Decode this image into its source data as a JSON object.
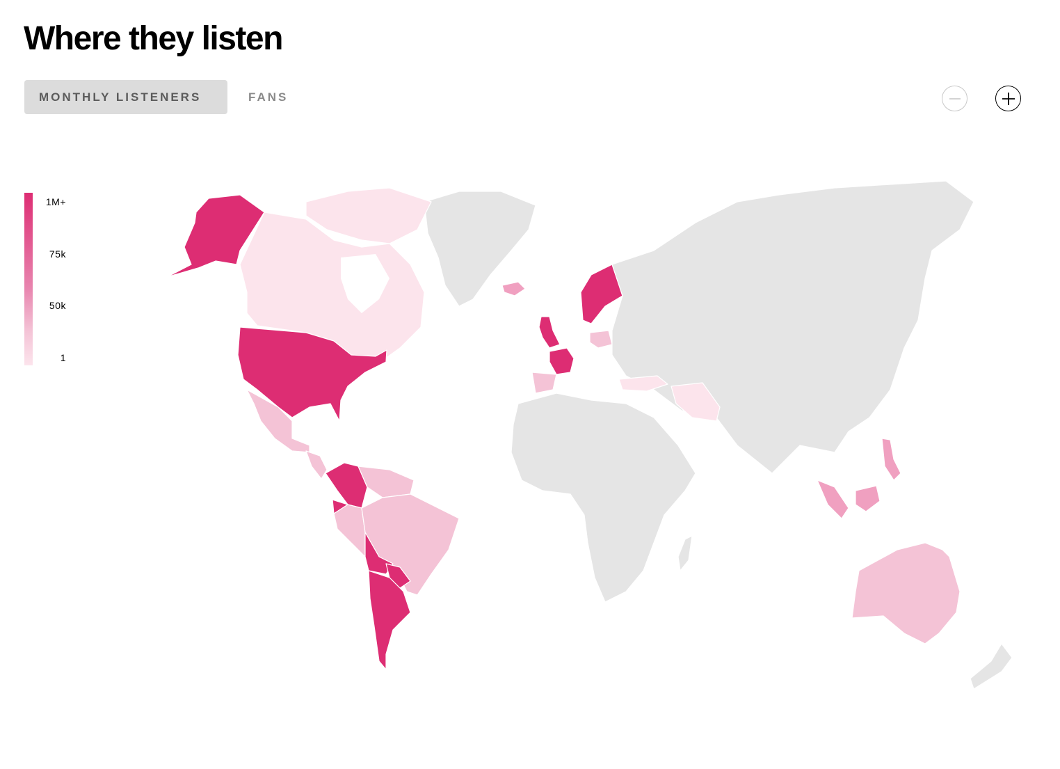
{
  "title": "Where they listen",
  "tabs": [
    {
      "label": "MONTHLY LISTENERS",
      "active": true
    },
    {
      "label": "FANS",
      "active": false
    }
  ],
  "zoom": {
    "out_icon": "minus-circle-icon",
    "in_icon": "plus-circle-icon"
  },
  "legend": {
    "labels": [
      "1M+",
      "75k",
      "50k",
      "1"
    ],
    "colors": {
      "max": "#dd2d73",
      "high": "#e884ae",
      "mid": "#f4c3d6",
      "low": "#fce4ec",
      "none": "#e5e5e5"
    }
  }
}
